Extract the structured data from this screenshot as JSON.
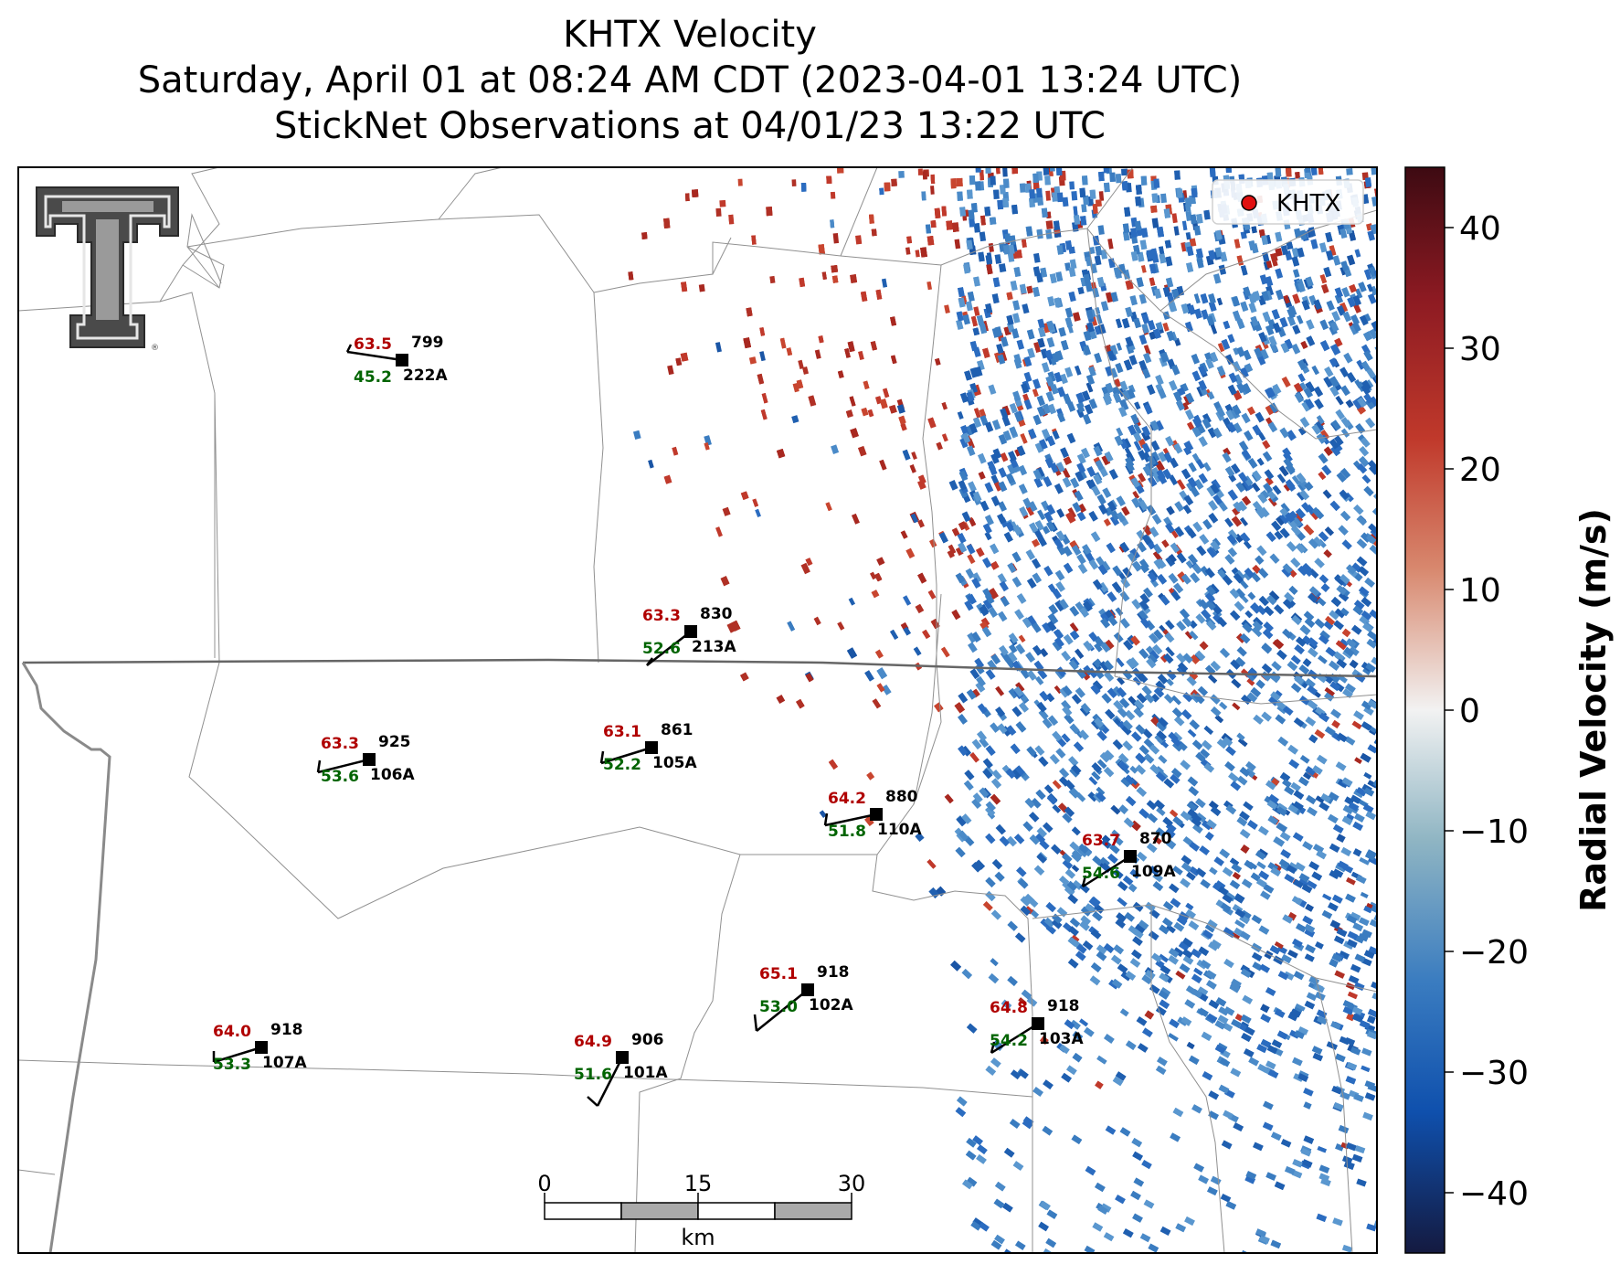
{
  "title": {
    "line1": "KHTX Velocity",
    "line2": "Saturday, April 01 at 08:24 AM CDT (2023-04-01 13:24 UTC)",
    "line3": "StickNet Observations at 04/01/23 13:22 UTC"
  },
  "legend": {
    "label": "KHTX",
    "marker_color": "#e01010"
  },
  "colorbar": {
    "label": "Radial Velocity (m/s)",
    "range": [
      -45,
      45
    ],
    "ticks": [
      "40",
      "30",
      "20",
      "10",
      "0",
      "−10",
      "−20",
      "−30",
      "−40"
    ],
    "tick_values": [
      40,
      30,
      20,
      10,
      0,
      -10,
      -20,
      -30,
      -40
    ],
    "colors": [
      "#e41a1c",
      "#3a7cc0",
      "#c0392b",
      "#1f5fb0"
    ]
  },
  "scale_bar": {
    "labels": [
      "0",
      "15",
      "30"
    ],
    "unit": "km"
  },
  "stations": [
    {
      "id": "222A",
      "temp": "63.5",
      "dew": "45.2",
      "pres": "799"
    },
    {
      "id": "213A",
      "temp": "63.3",
      "dew": "52.6",
      "pres": "830"
    },
    {
      "id": "106A",
      "temp": "63.3",
      "dew": "53.6",
      "pres": "925"
    },
    {
      "id": "105A",
      "temp": "63.1",
      "dew": "52.2",
      "pres": "861"
    },
    {
      "id": "110A",
      "temp": "64.2",
      "dew": "51.8",
      "pres": "880"
    },
    {
      "id": "109A",
      "temp": "63.7",
      "dew": "54.6",
      "pres": "870"
    },
    {
      "id": "102A",
      "temp": "65.1",
      "dew": "53.0",
      "pres": "918"
    },
    {
      "id": "103A",
      "temp": "64.8",
      "dew": "54.2",
      "pres": "918"
    },
    {
      "id": "107A",
      "temp": "64.0",
      "dew": "53.3",
      "pres": "918"
    },
    {
      "id": "101A",
      "temp": "64.9",
      "dew": "51.6",
      "pres": "906"
    }
  ],
  "logo": {
    "name": "texas-tech-double-t-logo"
  }
}
